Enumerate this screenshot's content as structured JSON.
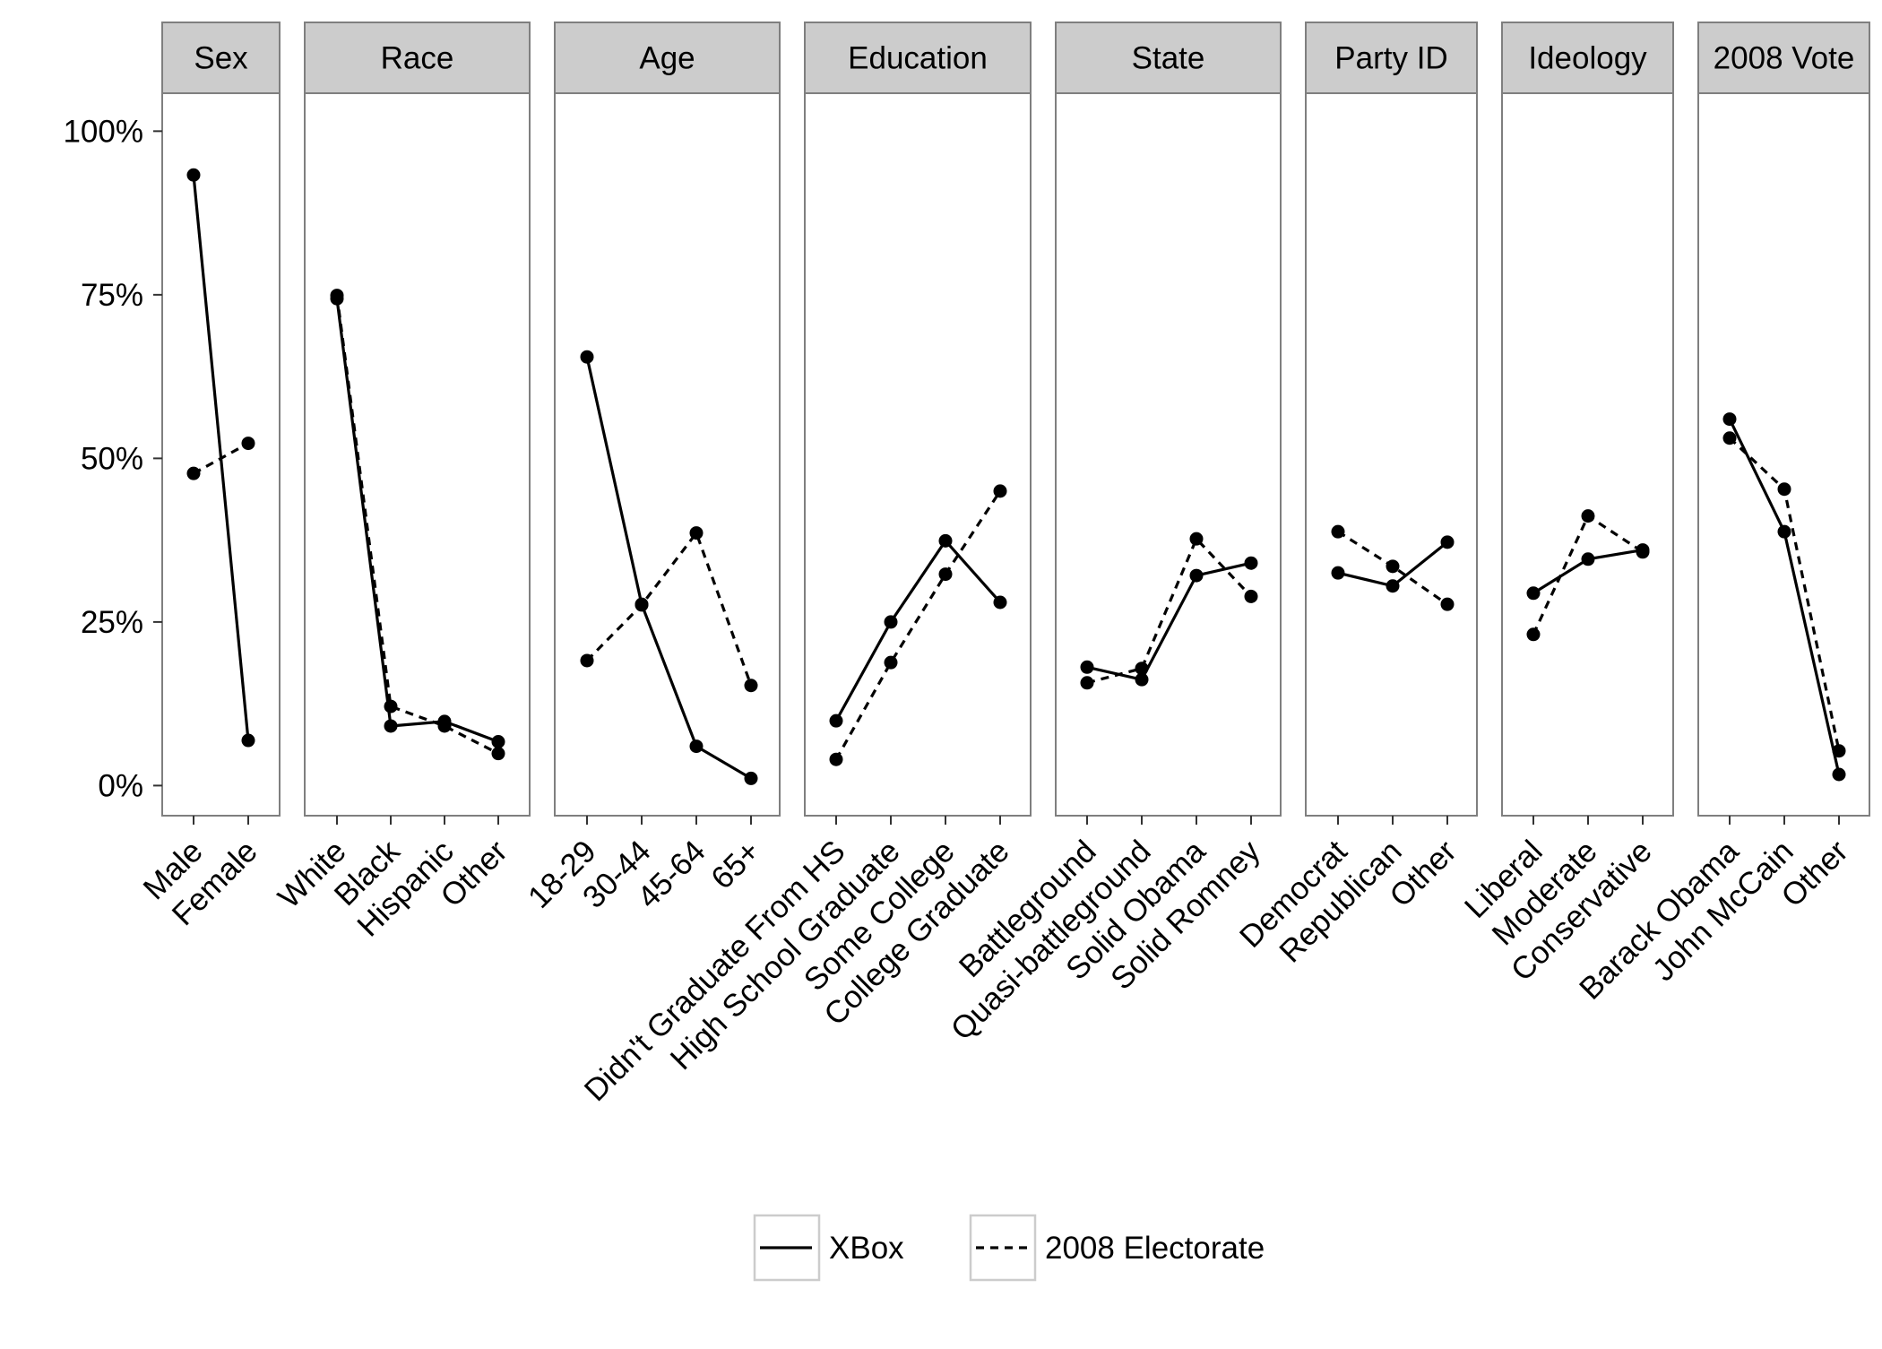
{
  "chart_data": {
    "type": "line",
    "y_axis": {
      "range": [
        -4.6,
        105.8
      ],
      "ticks": [
        0,
        25,
        50,
        75,
        100
      ],
      "tick_labels": [
        "0%",
        "25%",
        "50%",
        "75%",
        "100%"
      ]
    },
    "grid": true,
    "legend": {
      "placement": "bottom",
      "entries": [
        {
          "label": "XBox",
          "line_style": "solid"
        },
        {
          "label": "2008 Electorate",
          "line_style": "dashed"
        }
      ]
    },
    "colors": {
      "series": "#000000",
      "strip": "#cccccc",
      "grid": "#ebebeb",
      "panel_border": "#7f7f7f"
    },
    "series": [
      {
        "name": "XBox",
        "line_style": "solid"
      },
      {
        "name": "2008 Electorate",
        "line_style": "dashed"
      }
    ],
    "facets": [
      {
        "name": "Sex",
        "categories": [
          "Male",
          "Female"
        ],
        "values": {
          "xbox": [
            93.3,
            6.9
          ],
          "electorate": [
            47.7,
            52.3
          ]
        }
      },
      {
        "name": "Race",
        "categories": [
          "White",
          "Black",
          "Hispanic",
          "Other"
        ],
        "values": {
          "xbox": [
            74.4,
            9.1,
            9.8,
            6.7
          ],
          "electorate": [
            74.9,
            12.1,
            9.1,
            4.9
          ]
        }
      },
      {
        "name": "Age",
        "categories": [
          "18-29",
          "30-44",
          "45-64",
          "65+"
        ],
        "values": {
          "xbox": [
            65.5,
            27.7,
            6.0,
            1.1
          ],
          "electorate": [
            19.1,
            27.6,
            38.6,
            15.3
          ]
        }
      },
      {
        "name": "Education",
        "categories": [
          "Didn't Graduate From HS",
          "High School Graduate",
          "Some College",
          "College Graduate"
        ],
        "values": {
          "xbox": [
            9.9,
            25.0,
            37.4,
            28.0
          ],
          "electorate": [
            4.0,
            18.8,
            32.3,
            45.0
          ]
        }
      },
      {
        "name": "State",
        "categories": [
          "Battleground",
          "Quasi-battleground",
          "Solid Obama",
          "Solid Romney"
        ],
        "values": {
          "xbox": [
            18.1,
            16.2,
            32.1,
            34.0
          ],
          "electorate": [
            15.7,
            17.9,
            37.7,
            28.9
          ]
        }
      },
      {
        "name": "Party ID",
        "categories": [
          "Democrat",
          "Republican",
          "Other"
        ],
        "values": {
          "xbox": [
            32.5,
            30.5,
            37.2
          ],
          "electorate": [
            38.8,
            33.5,
            27.7
          ]
        }
      },
      {
        "name": "Ideology",
        "categories": [
          "Liberal",
          "Moderate",
          "Conservative"
        ],
        "values": {
          "xbox": [
            29.4,
            34.6,
            36.0
          ],
          "electorate": [
            23.1,
            41.2,
            35.7
          ]
        }
      },
      {
        "name": "2008 Vote",
        "categories": [
          "Barack Obama",
          "John McCain",
          "Other"
        ],
        "values": {
          "xbox": [
            56.0,
            38.8,
            1.7
          ],
          "electorate": [
            53.1,
            45.3,
            5.3
          ]
        }
      }
    ]
  }
}
